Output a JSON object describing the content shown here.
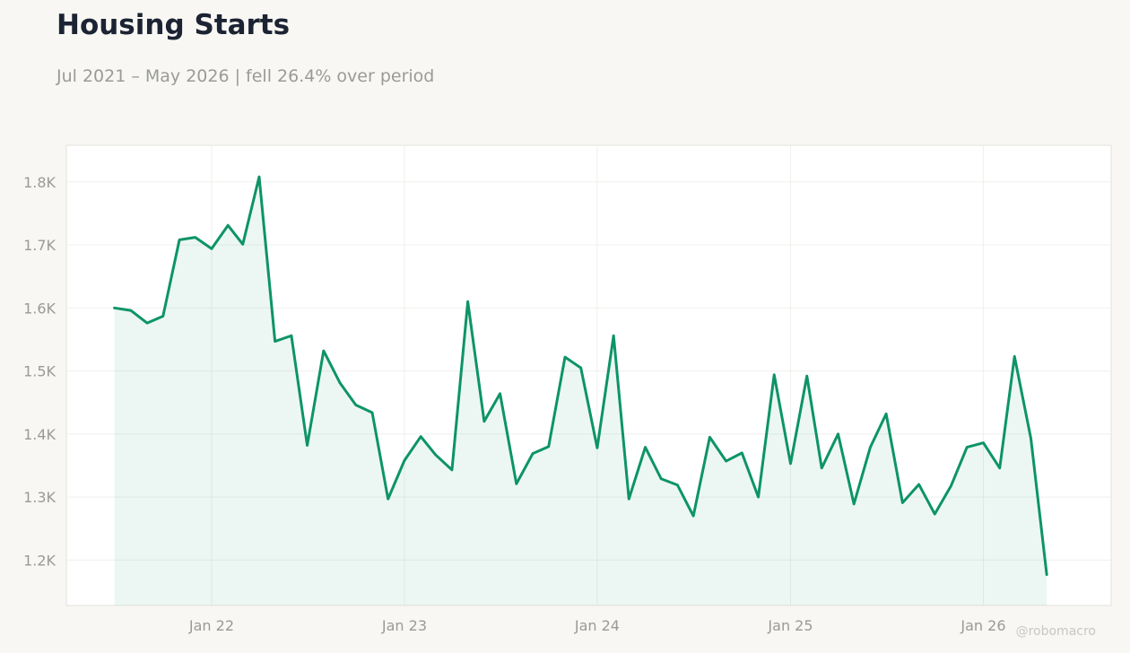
{
  "header": {
    "title": "Housing Starts",
    "subtitle": "Jul 2021 – May 2026 | fell 26.4% over period"
  },
  "watermark": "@robomacro",
  "colors": {
    "line": "#0d9467",
    "fill": "#0d9467",
    "plot_background": "#ffffff",
    "page_background": "#f8f7f3",
    "grid": "#efefec",
    "axis_text": "#9a9a96"
  },
  "chart_data": {
    "type": "area",
    "title": "Housing Starts",
    "xlabel": "",
    "ylabel": "",
    "x_ticks": [
      "Jan 22",
      "Jan 23",
      "Jan 24",
      "Jan 25",
      "Jan 26"
    ],
    "y_ticks": [
      "1.2K",
      "1.3K",
      "1.4K",
      "1.5K",
      "1.6K",
      "1.7K",
      "1.8K"
    ],
    "y_tick_values": [
      1200,
      1300,
      1400,
      1500,
      1600,
      1700,
      1800
    ],
    "ylim": [
      1128,
      1858
    ],
    "xlim": [
      "2021-04-01",
      "2026-08-31"
    ],
    "grid": true,
    "legend": "none",
    "series": [
      {
        "dates": [
          "2021-07",
          "2021-08",
          "2021-09",
          "2021-10",
          "2021-11",
          "2021-12",
          "2022-01",
          "2022-02",
          "2022-03",
          "2022-04",
          "2022-05",
          "2022-06",
          "2022-07",
          "2022-08",
          "2022-09",
          "2022-10",
          "2022-11",
          "2022-12",
          "2023-01",
          "2023-02",
          "2023-03",
          "2023-04",
          "2023-05",
          "2023-06",
          "2023-07",
          "2023-08",
          "2023-09",
          "2023-10",
          "2023-11",
          "2023-12",
          "2024-01",
          "2024-02",
          "2024-03",
          "2024-04",
          "2024-05",
          "2024-06",
          "2024-07",
          "2024-08",
          "2024-09",
          "2024-10",
          "2024-11",
          "2024-12",
          "2025-01",
          "2025-02",
          "2025-03",
          "2025-04",
          "2025-05",
          "2025-06",
          "2025-07",
          "2025-08",
          "2025-09",
          "2025-10",
          "2025-11",
          "2025-12",
          "2026-01",
          "2026-02",
          "2026-03",
          "2026-04",
          "2026-05"
        ],
        "values": [
          1600,
          1596,
          1576,
          1587,
          1708,
          1712,
          1694,
          1731,
          1701,
          1808,
          1547,
          1556,
          1382,
          1532,
          1481,
          1446,
          1434,
          1297,
          1358,
          1396,
          1367,
          1343,
          1610,
          1420,
          1464,
          1321,
          1369,
          1380,
          1522,
          1505,
          1378,
          1556,
          1297,
          1379,
          1329,
          1319,
          1270,
          1395,
          1357,
          1370,
          1300,
          1494,
          1353,
          1492,
          1346,
          1400,
          1289,
          1379,
          1432,
          1291,
          1320,
          1273,
          1318,
          1379,
          1386,
          1346,
          1523,
          1393,
          1177
        ]
      }
    ]
  }
}
